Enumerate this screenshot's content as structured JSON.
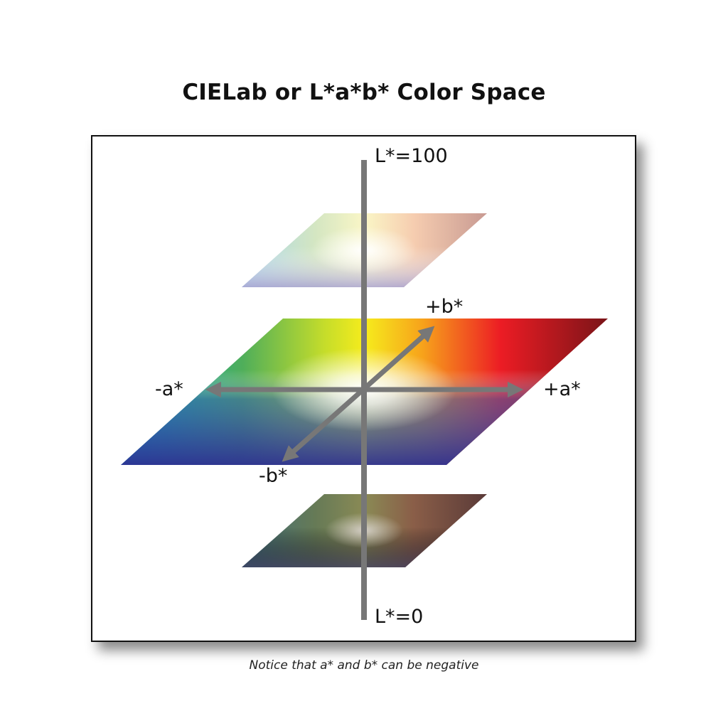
{
  "title": "CIELab or L*a*b* Color Space",
  "caption": "Notice that a* and b* can be negative",
  "axes": {
    "l_top": "L*=100",
    "l_bottom": "L*=0",
    "a_pos": "+a*",
    "a_neg": "-a*",
    "b_pos": "+b*",
    "b_neg": "-b*"
  },
  "colors": {
    "axis": "#777777",
    "frame_border": "#111111",
    "yellow": "#fff200",
    "red": "#ed1c24",
    "green": "#8dc63f",
    "cyan": "#00a0c6",
    "blue": "#2e3192",
    "purple": "#662d91"
  }
}
